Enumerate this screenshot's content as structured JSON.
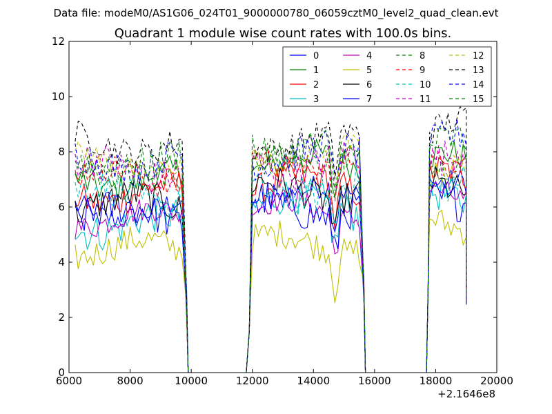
{
  "chart_data": {
    "type": "line",
    "suptitle": "Data file: modeM0/AS1G06_024T01_9000000780_06059cztM0_level2_quad_clean.evt",
    "title": "Quadrant 1 module wise count rates with 100.0s bins.",
    "xlabel": "",
    "ylabel": "",
    "x_offset_label": "+2.1646e8",
    "xlim": [
      6000,
      20000
    ],
    "ylim": [
      0,
      12
    ],
    "x_ticks": [
      6000,
      8000,
      10000,
      12000,
      14000,
      16000,
      18000,
      20000
    ],
    "y_ticks": [
      0,
      2,
      4,
      6,
      8,
      10,
      12
    ],
    "x_tick_labels": [
      "6000",
      "8000",
      "10000",
      "12000",
      "14000",
      "16000",
      "18000",
      "20000"
    ],
    "y_tick_labels": [
      "0",
      "2",
      "4",
      "6",
      "8",
      "10",
      "12"
    ],
    "legend_position": "top-right",
    "legend_columns": 4,
    "segments": [
      {
        "x_start": 6200,
        "x_end": 9750,
        "zero_after": [
          9900,
          10000,
          11800
        ]
      },
      {
        "x_start": 12000,
        "x_end": 15550,
        "zero_after": [
          15700,
          17700
        ]
      },
      {
        "x_start": 17800,
        "x_end": 19000,
        "zero_after": []
      }
    ],
    "series": [
      {
        "name": "0",
        "color": "#0000ff",
        "dash": "solid",
        "level": 5.9,
        "seg_levels": [
          5.9,
          6.4,
          6.6
        ]
      },
      {
        "name": "1",
        "color": "#008000",
        "dash": "solid",
        "level": 7.0,
        "seg_levels": [
          7.0,
          7.6,
          7.6
        ]
      },
      {
        "name": "2",
        "color": "#ff0000",
        "dash": "solid",
        "level": 6.5,
        "seg_levels": [
          6.5,
          6.8,
          7.0
        ]
      },
      {
        "name": "3",
        "color": "#00bfbf",
        "dash": "solid",
        "level": 5.4,
        "seg_levels": [
          5.4,
          6.1,
          6.2
        ]
      },
      {
        "name": "4",
        "color": "#bf00bf",
        "dash": "solid",
        "level": 5.6,
        "seg_levels": [
          5.6,
          5.9,
          6.4
        ]
      },
      {
        "name": "5",
        "color": "#bfbf00",
        "dash": "solid",
        "level": 4.5,
        "seg_levels": [
          4.5,
          4.7,
          5.4
        ]
      },
      {
        "name": "6",
        "color": "#000000",
        "dash": "solid",
        "level": 6.1,
        "seg_levels": [
          6.1,
          6.6,
          6.9
        ]
      },
      {
        "name": "7",
        "color": "#0000ff",
        "dash": "solid",
        "level": 5.7,
        "seg_levels": [
          5.7,
          6.0,
          6.5
        ]
      },
      {
        "name": "8",
        "color": "#008000",
        "dash": "dashed",
        "level": 7.3,
        "seg_levels": [
          7.3,
          7.9,
          7.8
        ]
      },
      {
        "name": "9",
        "color": "#ff0000",
        "dash": "dashed",
        "level": 7.1,
        "seg_levels": [
          7.1,
          7.6,
          7.9
        ]
      },
      {
        "name": "10",
        "color": "#00bfbf",
        "dash": "dashed",
        "level": 6.4,
        "seg_levels": [
          6.4,
          6.6,
          7.0
        ]
      },
      {
        "name": "11",
        "color": "#bf00bf",
        "dash": "dashed",
        "level": 7.4,
        "seg_levels": [
          7.4,
          7.6,
          8.0
        ]
      },
      {
        "name": "12",
        "color": "#bfbf00",
        "dash": "dashed",
        "level": 7.6,
        "seg_levels": [
          7.6,
          7.9,
          7.4
        ]
      },
      {
        "name": "13",
        "color": "#000000",
        "dash": "dashed",
        "level": 8.3,
        "seg_levels": [
          8.3,
          8.4,
          8.9
        ]
      },
      {
        "name": "14",
        "color": "#0000ff",
        "dash": "dashed",
        "level": 7.7,
        "seg_levels": [
          7.7,
          7.9,
          8.3
        ]
      },
      {
        "name": "15",
        "color": "#008000",
        "dash": "dashed",
        "level": 7.6,
        "seg_levels": [
          7.6,
          7.9,
          8.1
        ]
      }
    ]
  }
}
